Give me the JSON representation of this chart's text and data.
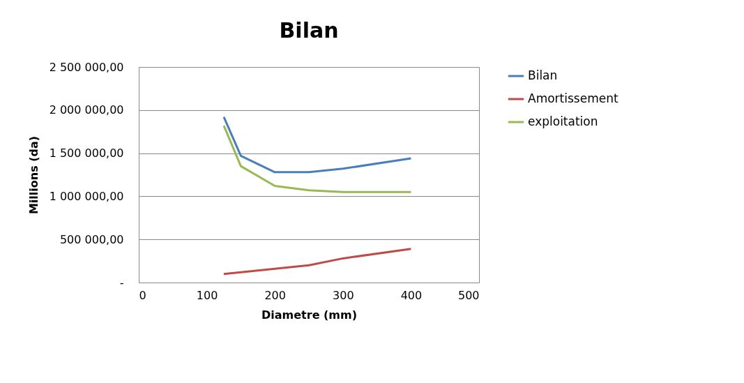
{
  "chart_data": {
    "type": "line",
    "title": "Bilan",
    "xlabel": "Diametre (mm)",
    "ylabel": "Millions (da)",
    "x": [
      125,
      150,
      200,
      250,
      300,
      400
    ],
    "series": [
      {
        "name": "Bilan",
        "color": "#4a7ebb",
        "values": [
          1920000,
          1470000,
          1280000,
          1280000,
          1320000,
          1440000
        ]
      },
      {
        "name": "Amortissement",
        "color": "#be4b48",
        "values": [
          100000,
          120000,
          160000,
          200000,
          280000,
          390000
        ]
      },
      {
        "name": "exploitation",
        "color": "#98b954",
        "values": [
          1820000,
          1350000,
          1120000,
          1070000,
          1050000,
          1050000
        ]
      }
    ],
    "xlim": [
      0,
      500
    ],
    "xticks": [
      0,
      100,
      200,
      300,
      400,
      500
    ],
    "ylim": [
      0,
      2500000
    ],
    "yticks": [
      {
        "value": 0,
        "label": "-"
      },
      {
        "value": 500000,
        "label": "500 000,00"
      },
      {
        "value": 1000000,
        "label": "1 000 000,00"
      },
      {
        "value": 1500000,
        "label": "1 500 000,00"
      },
      {
        "value": 2000000,
        "label": "2 000 000,00"
      },
      {
        "value": 2500000,
        "label": "2 500 000,00"
      }
    ],
    "grid": "y",
    "legend": "right",
    "marker": "none",
    "line_style": "solid"
  }
}
